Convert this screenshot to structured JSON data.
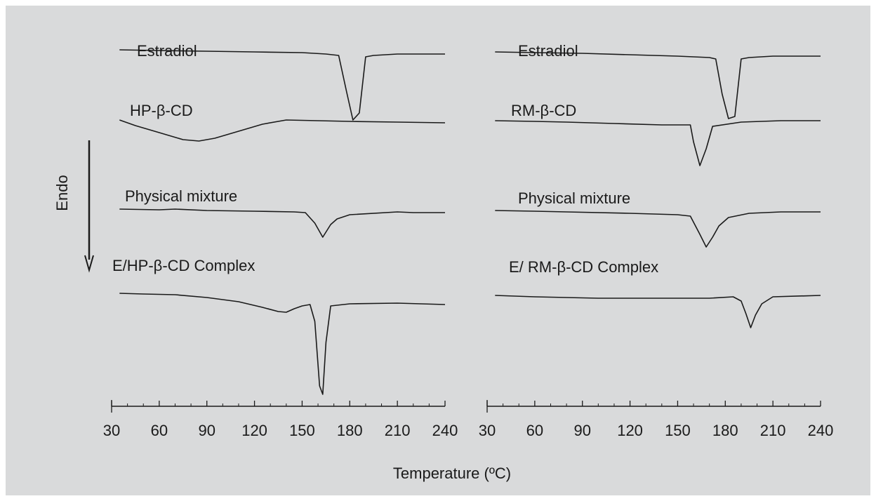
{
  "chart_data": {
    "type": "line",
    "xlabel": "Temperature (ºC)",
    "endo_label": "Endo",
    "xticks": [
      30,
      60,
      90,
      120,
      150,
      180,
      210,
      240
    ],
    "xlim": [
      30,
      240
    ],
    "panels": [
      {
        "series": [
          {
            "name": "Estradiol",
            "points": [
              [
                35,
                0
              ],
              [
                60,
                1
              ],
              [
                90,
                2
              ],
              [
                120,
                3
              ],
              [
                150,
                4
              ],
              [
                165,
                6
              ],
              [
                173,
                8
              ],
              [
                178,
                60
              ],
              [
                182,
                100
              ],
              [
                186,
                90
              ],
              [
                190,
                10
              ],
              [
                195,
                8
              ],
              [
                210,
                6
              ],
              [
                240,
                6
              ]
            ]
          },
          {
            "name": "HP-β-CD",
            "points": [
              [
                35,
                0
              ],
              [
                45,
                8
              ],
              [
                60,
                18
              ],
              [
                75,
                28
              ],
              [
                85,
                30
              ],
              [
                95,
                26
              ],
              [
                110,
                16
              ],
              [
                125,
                6
              ],
              [
                140,
                0
              ],
              [
                160,
                1
              ],
              [
                180,
                2
              ],
              [
                210,
                3
              ],
              [
                240,
                4
              ]
            ]
          },
          {
            "name": "Physical mixture",
            "points": [
              [
                35,
                0
              ],
              [
                60,
                1
              ],
              [
                70,
                0
              ],
              [
                90,
                2
              ],
              [
                120,
                3
              ],
              [
                145,
                4
              ],
              [
                152,
                5
              ],
              [
                158,
                20
              ],
              [
                163,
                40
              ],
              [
                168,
                22
              ],
              [
                172,
                14
              ],
              [
                180,
                8
              ],
              [
                210,
                4
              ],
              [
                220,
                5
              ],
              [
                240,
                5
              ]
            ]
          },
          {
            "name": "E/HP-β-CD Complex",
            "points": [
              [
                35,
                0
              ],
              [
                50,
                1
              ],
              [
                70,
                2
              ],
              [
                90,
                6
              ],
              [
                110,
                12
              ],
              [
                125,
                20
              ],
              [
                135,
                26
              ],
              [
                140,
                27
              ],
              [
                145,
                22
              ],
              [
                150,
                18
              ],
              [
                155,
                16
              ],
              [
                158,
                40
              ],
              [
                161,
                132
              ],
              [
                163,
                144
              ],
              [
                165,
                70
              ],
              [
                168,
                18
              ],
              [
                180,
                15
              ],
              [
                210,
                14
              ],
              [
                240,
                16
              ]
            ]
          }
        ]
      },
      {
        "series": [
          {
            "name": "Estradiol",
            "points": [
              [
                35,
                0
              ],
              [
                60,
                1
              ],
              [
                90,
                2
              ],
              [
                120,
                4
              ],
              [
                150,
                6
              ],
              [
                170,
                8
              ],
              [
                174,
                10
              ],
              [
                178,
                60
              ],
              [
                182,
                95
              ],
              [
                186,
                92
              ],
              [
                190,
                10
              ],
              [
                195,
                8
              ],
              [
                210,
                6
              ],
              [
                240,
                6
              ]
            ]
          },
          {
            "name": "RM-β-CD",
            "points": [
              [
                35,
                0
              ],
              [
                60,
                1
              ],
              [
                80,
                2
              ],
              [
                110,
                4
              ],
              [
                140,
                6
              ],
              [
                158,
                6
              ],
              [
                160,
                30
              ],
              [
                164,
                64
              ],
              [
                168,
                40
              ],
              [
                172,
                8
              ],
              [
                190,
                2
              ],
              [
                215,
                0
              ],
              [
                240,
                0
              ]
            ]
          },
          {
            "name": "Physical mixture",
            "points": [
              [
                35,
                0
              ],
              [
                60,
                1
              ],
              [
                80,
                2
              ],
              [
                120,
                4
              ],
              [
                150,
                6
              ],
              [
                158,
                8
              ],
              [
                164,
                34
              ],
              [
                168,
                52
              ],
              [
                172,
                38
              ],
              [
                176,
                22
              ],
              [
                182,
                10
              ],
              [
                195,
                4
              ],
              [
                215,
                2
              ],
              [
                240,
                2
              ]
            ]
          },
          {
            "name": "E/ RM-β-CD Complex",
            "points": [
              [
                35,
                0
              ],
              [
                60,
                2
              ],
              [
                80,
                3
              ],
              [
                100,
                4
              ],
              [
                120,
                4
              ],
              [
                150,
                4
              ],
              [
                170,
                4
              ],
              [
                185,
                2
              ],
              [
                190,
                8
              ],
              [
                193,
                26
              ],
              [
                196,
                46
              ],
              [
                199,
                28
              ],
              [
                203,
                12
              ],
              [
                210,
                2
              ],
              [
                240,
                0
              ]
            ]
          }
        ]
      }
    ]
  }
}
